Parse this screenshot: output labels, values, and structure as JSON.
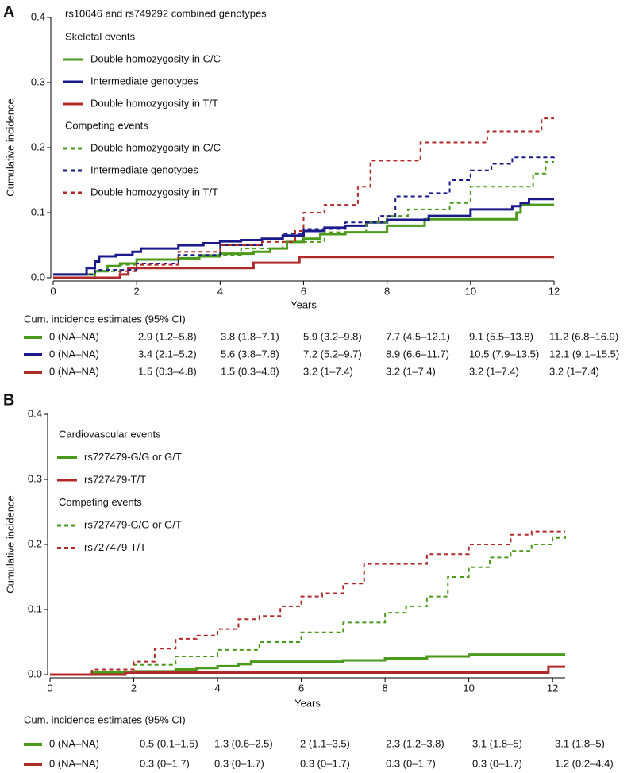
{
  "chart_data": [
    {
      "type": "line",
      "step": "post",
      "panel": "A",
      "xlabel": "Years",
      "ylabel": "Cumulative incidence",
      "xlim": [
        0,
        12
      ],
      "ylim": [
        0,
        0.4
      ],
      "xticks": [
        0,
        2,
        4,
        6,
        8,
        10,
        12
      ],
      "yticks": [
        {
          "value": 0,
          "label": "0.0"
        },
        0.1,
        0.2,
        0.3,
        0.4
      ],
      "legend_title": "rs10046 and rs749292 combined genotypes",
      "series_groups": [
        {
          "name": "Skeletal events",
          "series": [
            {
              "name": "Double homozygosity in C/C",
              "color": "#4c9a1c",
              "linestyle": "solid",
              "x": [
                0,
                1.0,
                1.3,
                1.6,
                2,
                3,
                3.5,
                4,
                4.8,
                5.2,
                5.6,
                6,
                6.4,
                7,
                8,
                8.9,
                11.1,
                11.2,
                12
              ],
              "values": [
                0.005,
                0.01,
                0.018,
                0.022,
                0.028,
                0.03,
                0.033,
                0.037,
                0.04,
                0.045,
                0.055,
                0.06,
                0.067,
                0.07,
                0.08,
                0.09,
                0.1,
                0.112,
                0.112
              ]
            },
            {
              "name": "Intermediate genotypes",
              "color": "#1a1a8c",
              "linestyle": "solid",
              "x": [
                0,
                0.8,
                1.0,
                1.1,
                1.5,
                1.9,
                2.1,
                3,
                3.6,
                4,
                4.5,
                5,
                5.5,
                6,
                6.5,
                7,
                7.5,
                8,
                9,
                10,
                11,
                11.2,
                11.4,
                12
              ],
              "values": [
                0.005,
                0.015,
                0.025,
                0.033,
                0.035,
                0.04,
                0.045,
                0.05,
                0.053,
                0.056,
                0.058,
                0.06,
                0.065,
                0.072,
                0.077,
                0.08,
                0.085,
                0.089,
                0.095,
                0.105,
                0.11,
                0.115,
                0.121,
                0.121
              ]
            },
            {
              "name": "Double homozygosity in T/T",
              "color": "#b02a2a",
              "linestyle": "solid",
              "x": [
                0,
                1.6,
                1.8,
                4.8,
                5.9,
                12
              ],
              "values": [
                0,
                0.005,
                0.015,
                0.023,
                0.032,
                0.032
              ]
            }
          ]
        },
        {
          "name": "Competing events",
          "series": [
            {
              "name": "Double homozygosity in C/C",
              "color": "#4c9a1c",
              "linestyle": "dashed",
              "x": [
                0,
                1,
                1.6,
                2.5,
                3.5,
                4.5,
                5.5,
                6.5,
                7.5,
                8,
                8.5,
                9.5,
                10,
                11.2,
                11.5,
                11.8,
                12
              ],
              "values": [
                0,
                0.01,
                0.02,
                0.028,
                0.035,
                0.045,
                0.055,
                0.07,
                0.085,
                0.095,
                0.105,
                0.115,
                0.14,
                0.14,
                0.16,
                0.178,
                0.178
              ]
            },
            {
              "name": "Intermediate genotypes",
              "color": "#1a1a8c",
              "linestyle": "dashed",
              "x": [
                0,
                1,
                2,
                3,
                4,
                5,
                5.5,
                6,
                7,
                7.8,
                8.2,
                9,
                9.5,
                10,
                10.5,
                11,
                12
              ],
              "values": [
                0.005,
                0.012,
                0.022,
                0.035,
                0.05,
                0.06,
                0.068,
                0.075,
                0.085,
                0.095,
                0.125,
                0.13,
                0.15,
                0.165,
                0.175,
                0.185,
                0.188
              ]
            },
            {
              "name": "Double homozygosity in T/T",
              "color": "#b02a2a",
              "linestyle": "dashed",
              "x": [
                0,
                1.6,
                2,
                3,
                4,
                5,
                5.8,
                6,
                6.5,
                7.3,
                7.6,
                8.8,
                10.4,
                11.7,
                12
              ],
              "values": [
                0,
                0.01,
                0.02,
                0.04,
                0.05,
                0.055,
                0.072,
                0.1,
                0.112,
                0.14,
                0.18,
                0.208,
                0.225,
                0.245,
                0.245
              ]
            }
          ]
        }
      ],
      "table": {
        "title": "Cum. incidence estimates (95% CI)",
        "rows": [
          {
            "color": "#4c9a1c",
            "cells": [
              "0 (NA–NA)",
              "2.9 (1.2–5.8)",
              "3.8 (1.8–7.1)",
              "5.9 (3.2–9.8)",
              "7.7 (4.5–12.1)",
              "9.1 (5.5–13.8)",
              "11.2 (6.8–16.9)"
            ]
          },
          {
            "color": "#1a1a8c",
            "cells": [
              "0 (NA–NA)",
              "3.4 (2.1–5.2)",
              "5.6 (3.8–7.8)",
              "7.2 (5.2–9.7)",
              "8.9 (6.6–11.7)",
              "10.5 (7.9–13.5)",
              "12.1 (9.1–15.5)"
            ]
          },
          {
            "color": "#b02a2a",
            "cells": [
              "0 (NA–NA)",
              "1.5 (0.3–4.8)",
              "1.5 (0.3–4.8)",
              "3.2 (1–7.4)",
              "3.2 (1–7.4)",
              "3.2 (1–7.4)",
              "3.2 (1–7.4)"
            ]
          }
        ]
      }
    },
    {
      "type": "line",
      "step": "post",
      "panel": "B",
      "xlabel": "Years",
      "ylabel": "Cumulative incidence",
      "xlim": [
        0,
        12.3
      ],
      "ylim": [
        0,
        0.4
      ],
      "xticks": [
        0,
        2,
        4,
        6,
        8,
        10,
        12
      ],
      "yticks": [
        {
          "value": 0,
          "label": "0.0"
        },
        0.1,
        0.2,
        0.3,
        0.4
      ],
      "series_groups": [
        {
          "name": "Cardiovascular events",
          "series": [
            {
              "name": "rs727479-G/G or G/T",
              "color": "#4c9a1c",
              "linestyle": "solid",
              "x": [
                0,
                1,
                2,
                3,
                3.5,
                4,
                4.5,
                4.8,
                7,
                8,
                9,
                10,
                12.3
              ],
              "values": [
                0,
                0.003,
                0.005,
                0.008,
                0.01,
                0.013,
                0.016,
                0.02,
                0.022,
                0.025,
                0.028,
                0.031,
                0.031
              ]
            },
            {
              "name": "rs727479-T/T",
              "color": "#b02a2a",
              "linestyle": "solid",
              "x": [
                0,
                1.8,
                11.9,
                12.3
              ],
              "values": [
                0,
                0.003,
                0.012,
                0.012
              ]
            }
          ]
        },
        {
          "name": "Competing events",
          "series": [
            {
              "name": "rs727479-G/G or G/T",
              "color": "#4c9a1c",
              "linestyle": "dashed",
              "x": [
                0,
                1,
                2,
                3,
                4,
                5,
                6,
                7,
                8,
                8.5,
                9,
                9.5,
                10,
                10.5,
                11,
                11.5,
                12,
                12.3
              ],
              "values": [
                0,
                0.005,
                0.015,
                0.028,
                0.038,
                0.05,
                0.065,
                0.08,
                0.095,
                0.105,
                0.12,
                0.15,
                0.165,
                0.18,
                0.19,
                0.2,
                0.21,
                0.212
              ]
            },
            {
              "name": "rs727479-T/T",
              "color": "#b02a2a",
              "linestyle": "dashed",
              "x": [
                0,
                1,
                2,
                2.5,
                3,
                3.5,
                4,
                4.5,
                5,
                5.5,
                6,
                6.5,
                7,
                7.5,
                9,
                10,
                11,
                11.5,
                12.3
              ],
              "values": [
                0,
                0.008,
                0.02,
                0.04,
                0.055,
                0.06,
                0.07,
                0.085,
                0.09,
                0.105,
                0.12,
                0.125,
                0.14,
                0.17,
                0.185,
                0.2,
                0.215,
                0.22,
                0.22
              ]
            }
          ]
        }
      ],
      "table": {
        "title": "Cum. incidence estimates (95% CI)",
        "rows": [
          {
            "color": "#4c9a1c",
            "cells": [
              "0 (NA–NA)",
              "0.5 (0.1–1.5)",
              "1.3 (0.6–2.5)",
              "2 (1.1–3.5)",
              "2.3 (1.2–3.8)",
              "3.1 (1.8–5)",
              "3.1 (1.8–5)"
            ]
          },
          {
            "color": "#b02a2a",
            "cells": [
              "0 (NA–NA)",
              "0.3 (0–1.7)",
              "0.3 (0–1.7)",
              "0.3 (0–1.7)",
              "0.3 (0–1.7)",
              "0.3 (0–1.7)",
              "1.2 (0.2–4.4)"
            ]
          }
        ]
      }
    }
  ]
}
